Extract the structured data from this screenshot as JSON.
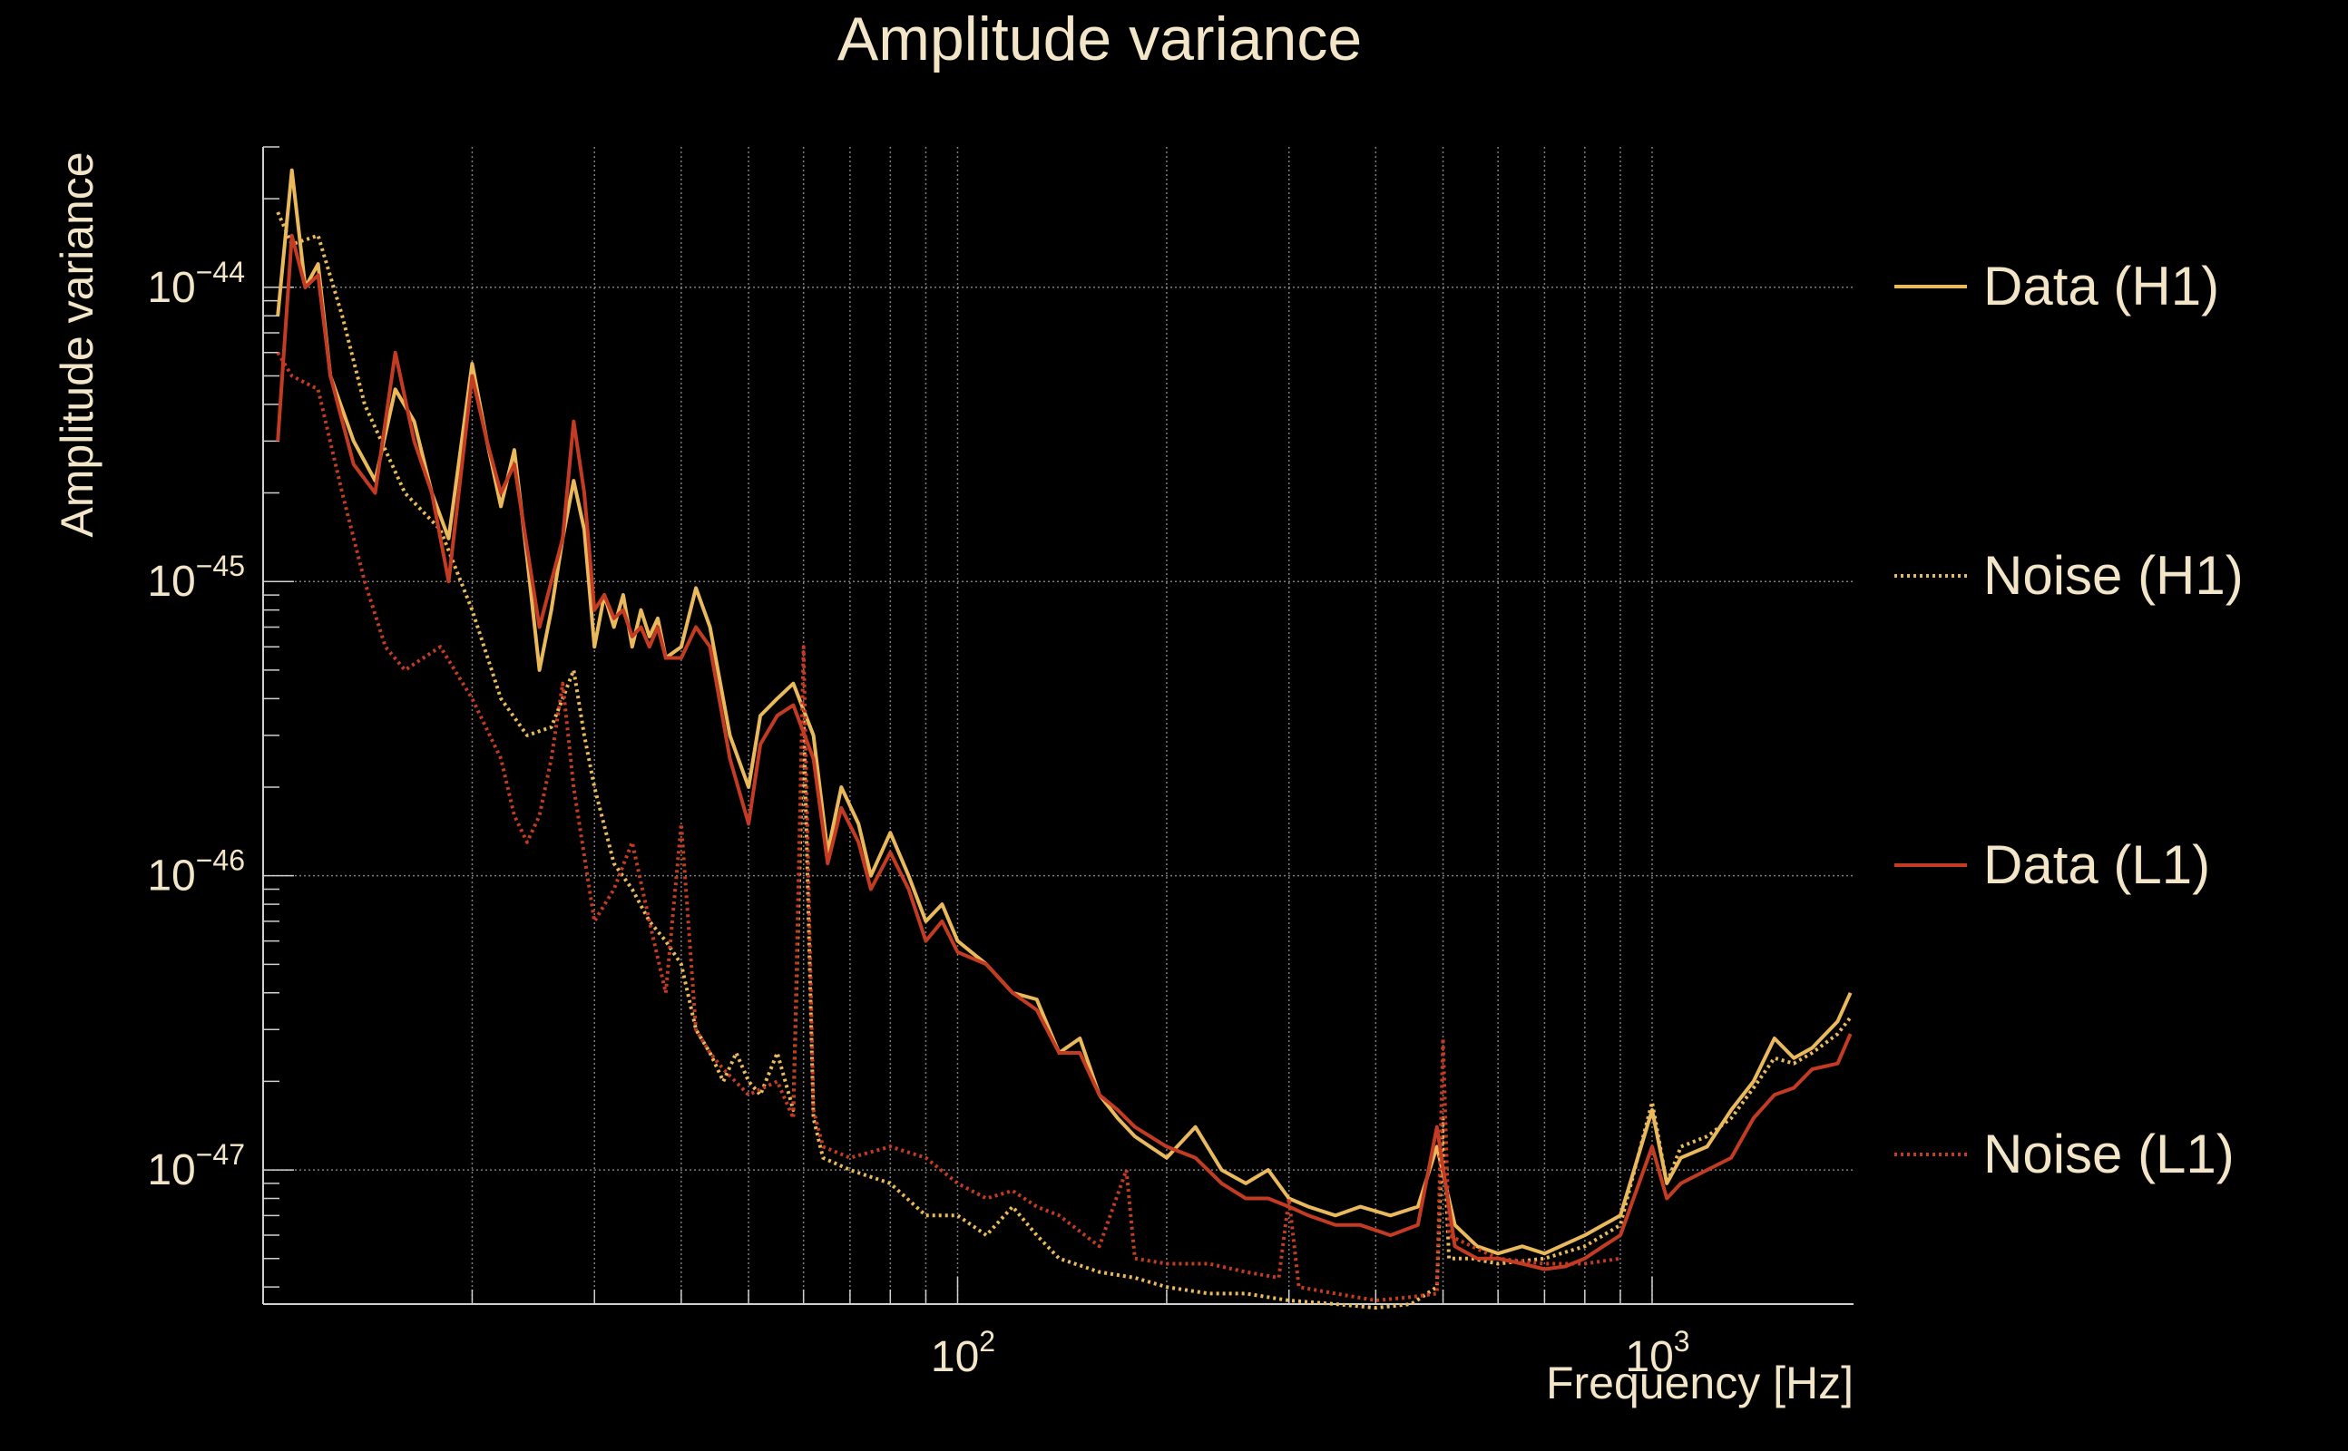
{
  "chart_data": {
    "type": "line",
    "title": "Amplitude variance",
    "xlabel": "Frequency [Hz]",
    "ylabel": "Amplitude variance",
    "xscale": "log",
    "yscale": "log",
    "xlim": [
      10,
      1950
    ],
    "ylim": [
      3.5e-48,
      3e-44
    ],
    "grid": true,
    "legend_position": "right",
    "x_ticks": [
      {
        "value": 100,
        "base": "10",
        "exp": "2"
      },
      {
        "value": 1000,
        "base": "10",
        "exp": "3"
      }
    ],
    "y_ticks": [
      {
        "value": 1e-44,
        "base": "10",
        "exp": "−44"
      },
      {
        "value": 1e-45,
        "base": "10",
        "exp": "−45"
      },
      {
        "value": 1e-46,
        "base": "10",
        "exp": "−46"
      },
      {
        "value": 1e-47,
        "base": "10",
        "exp": "−47"
      }
    ],
    "series": [
      {
        "name": "Data (H1)",
        "color": "#e9b95c",
        "dash": "solid",
        "points": [
          [
            10.5,
            8e-45
          ],
          [
            11,
            2.5e-44
          ],
          [
            11.5,
            1e-44
          ],
          [
            12,
            1.2e-44
          ],
          [
            12.5,
            5e-45
          ],
          [
            13.5,
            3e-45
          ],
          [
            14.5,
            2.2e-45
          ],
          [
            15.5,
            4.5e-45
          ],
          [
            16.5,
            3.5e-45
          ],
          [
            17.5,
            2e-45
          ],
          [
            18.5,
            1.4e-45
          ],
          [
            20,
            5.5e-45
          ],
          [
            21,
            3e-45
          ],
          [
            22,
            1.8e-45
          ],
          [
            23,
            2.8e-45
          ],
          [
            24,
            1.2e-45
          ],
          [
            25,
            5e-46
          ],
          [
            26,
            8e-46
          ],
          [
            27,
            1.4e-45
          ],
          [
            28,
            2.2e-45
          ],
          [
            29,
            1.5e-45
          ],
          [
            30,
            6e-46
          ],
          [
            31,
            9e-46
          ],
          [
            32,
            7e-46
          ],
          [
            33,
            9e-46
          ],
          [
            34,
            6e-46
          ],
          [
            35,
            8e-46
          ],
          [
            36,
            6.5e-46
          ],
          [
            37,
            7.5e-46
          ],
          [
            38,
            5.5e-46
          ],
          [
            40,
            6e-46
          ],
          [
            42,
            9.5e-46
          ],
          [
            44,
            7e-46
          ],
          [
            47,
            3e-46
          ],
          [
            50,
            2e-46
          ],
          [
            52,
            3.5e-46
          ],
          [
            55,
            4e-46
          ],
          [
            58,
            4.5e-46
          ],
          [
            62,
            3e-46
          ],
          [
            65,
            1.2e-46
          ],
          [
            68,
            2e-46
          ],
          [
            72,
            1.5e-46
          ],
          [
            75,
            1e-46
          ],
          [
            80,
            1.4e-46
          ],
          [
            85,
            1e-46
          ],
          [
            90,
            7e-47
          ],
          [
            95,
            8e-47
          ],
          [
            100,
            6e-47
          ],
          [
            110,
            5e-47
          ],
          [
            120,
            4e-47
          ],
          [
            130,
            3.8e-47
          ],
          [
            140,
            2.5e-47
          ],
          [
            150,
            2.8e-47
          ],
          [
            160,
            1.8e-47
          ],
          [
            170,
            1.5e-47
          ],
          [
            180,
            1.3e-47
          ],
          [
            200,
            1.1e-47
          ],
          [
            220,
            1.4e-47
          ],
          [
            240,
            1e-47
          ],
          [
            260,
            9e-48
          ],
          [
            280,
            1e-47
          ],
          [
            300,
            8e-48
          ],
          [
            320,
            7.5e-48
          ],
          [
            350,
            7e-48
          ],
          [
            380,
            7.5e-48
          ],
          [
            420,
            7e-48
          ],
          [
            460,
            7.5e-48
          ],
          [
            490,
            1.2e-47
          ],
          [
            520,
            6.5e-48
          ],
          [
            560,
            5.5e-48
          ],
          [
            600,
            5.2e-48
          ],
          [
            650,
            5.5e-48
          ],
          [
            700,
            5.2e-48
          ],
          [
            750,
            5.6e-48
          ],
          [
            800,
            6e-48
          ],
          [
            850,
            6.5e-48
          ],
          [
            900,
            7e-48
          ],
          [
            1000,
            1.6e-47
          ],
          [
            1050,
            9e-48
          ],
          [
            1100,
            1.1e-47
          ],
          [
            1200,
            1.2e-47
          ],
          [
            1300,
            1.6e-47
          ],
          [
            1400,
            2e-47
          ],
          [
            1500,
            2.8e-47
          ],
          [
            1600,
            2.4e-47
          ],
          [
            1700,
            2.6e-47
          ],
          [
            1850,
            3.2e-47
          ],
          [
            1930,
            4e-47
          ]
        ]
      },
      {
        "name": "Noise (H1)",
        "color": "#e9b95c",
        "dash": "dotted",
        "points": [
          [
            10.5,
            1.8e-44
          ],
          [
            11,
            1.4e-44
          ],
          [
            12,
            1.5e-44
          ],
          [
            13,
            8e-45
          ],
          [
            14,
            4e-45
          ],
          [
            16,
            2e-45
          ],
          [
            18,
            1.5e-45
          ],
          [
            20,
            8e-46
          ],
          [
            22,
            4e-46
          ],
          [
            24,
            3e-46
          ],
          [
            26,
            3.2e-46
          ],
          [
            27,
            4e-46
          ],
          [
            28,
            5e-46
          ],
          [
            29,
            3e-46
          ],
          [
            30,
            2e-46
          ],
          [
            32,
            1.1e-46
          ],
          [
            34,
            9e-47
          ],
          [
            36,
            7e-47
          ],
          [
            38,
            6e-47
          ],
          [
            40,
            5e-47
          ],
          [
            42,
            3e-47
          ],
          [
            44,
            2.5e-47
          ],
          [
            46,
            2e-47
          ],
          [
            48,
            2.5e-47
          ],
          [
            50,
            2e-47
          ],
          [
            52,
            1.8e-47
          ],
          [
            55,
            2.5e-47
          ],
          [
            58,
            1.6e-47
          ],
          [
            60,
            3.5e-46
          ],
          [
            62,
            1.5e-47
          ],
          [
            64,
            1.1e-47
          ],
          [
            70,
            1e-47
          ],
          [
            80,
            9e-48
          ],
          [
            90,
            7e-48
          ],
          [
            100,
            7e-48
          ],
          [
            110,
            6e-48
          ],
          [
            120,
            7.5e-48
          ],
          [
            130,
            6e-48
          ],
          [
            140,
            5e-48
          ],
          [
            160,
            4.5e-48
          ],
          [
            180,
            4.3e-48
          ],
          [
            200,
            4e-48
          ],
          [
            230,
            3.8e-48
          ],
          [
            260,
            3.8e-48
          ],
          [
            300,
            3.6e-48
          ],
          [
            350,
            3.5e-48
          ],
          [
            400,
            3.4e-48
          ],
          [
            450,
            3.5e-48
          ],
          [
            490,
            4e-48
          ],
          [
            500,
            1.5e-47
          ],
          [
            510,
            5e-48
          ],
          [
            550,
            5e-48
          ],
          [
            600,
            4.8e-48
          ],
          [
            700,
            5e-48
          ],
          [
            800,
            5.5e-48
          ],
          [
            900,
            6.5e-48
          ],
          [
            1000,
            1.7e-47
          ],
          [
            1050,
            9e-48
          ],
          [
            1100,
            1.2e-47
          ],
          [
            1200,
            1.3e-47
          ],
          [
            1300,
            1.5e-47
          ],
          [
            1400,
            1.9e-47
          ],
          [
            1500,
            2.4e-47
          ],
          [
            1600,
            2.3e-47
          ],
          [
            1700,
            2.5e-47
          ],
          [
            1850,
            2.9e-47
          ],
          [
            1930,
            3.3e-47
          ]
        ]
      },
      {
        "name": "Data (L1)",
        "color": "#c23b22",
        "dash": "solid",
        "points": [
          [
            10.5,
            3e-45
          ],
          [
            11,
            1.5e-44
          ],
          [
            11.5,
            1e-44
          ],
          [
            12,
            1.1e-44
          ],
          [
            12.5,
            5e-45
          ],
          [
            13.5,
            2.5e-45
          ],
          [
            14.5,
            2e-45
          ],
          [
            15.5,
            6e-45
          ],
          [
            16.5,
            3e-45
          ],
          [
            17.5,
            2e-45
          ],
          [
            18.5,
            1e-45
          ],
          [
            20,
            5e-45
          ],
          [
            21,
            3e-45
          ],
          [
            22,
            2e-45
          ],
          [
            23,
            2.5e-45
          ],
          [
            24,
            1.3e-45
          ],
          [
            25,
            7e-46
          ],
          [
            26,
            1e-45
          ],
          [
            27,
            1.4e-45
          ],
          [
            28,
            3.5e-45
          ],
          [
            29,
            2e-45
          ],
          [
            30,
            8e-46
          ],
          [
            31,
            9e-46
          ],
          [
            32,
            7.5e-46
          ],
          [
            33,
            8e-46
          ],
          [
            34,
            6.5e-46
          ],
          [
            35,
            7e-46
          ],
          [
            36,
            6e-46
          ],
          [
            37,
            7e-46
          ],
          [
            38,
            5.5e-46
          ],
          [
            40,
            5.5e-46
          ],
          [
            42,
            7e-46
          ],
          [
            44,
            6e-46
          ],
          [
            47,
            2.5e-46
          ],
          [
            50,
            1.5e-46
          ],
          [
            52,
            2.8e-46
          ],
          [
            55,
            3.5e-46
          ],
          [
            58,
            3.8e-46
          ],
          [
            62,
            2.5e-46
          ],
          [
            65,
            1.1e-46
          ],
          [
            68,
            1.7e-46
          ],
          [
            72,
            1.3e-46
          ],
          [
            75,
            9e-47
          ],
          [
            80,
            1.2e-46
          ],
          [
            85,
            9e-47
          ],
          [
            90,
            6e-47
          ],
          [
            95,
            7e-47
          ],
          [
            100,
            5.5e-47
          ],
          [
            110,
            5e-47
          ],
          [
            120,
            4e-47
          ],
          [
            130,
            3.5e-47
          ],
          [
            140,
            2.5e-47
          ],
          [
            150,
            2.5e-47
          ],
          [
            160,
            1.8e-47
          ],
          [
            170,
            1.6e-47
          ],
          [
            180,
            1.4e-47
          ],
          [
            200,
            1.2e-47
          ],
          [
            220,
            1.1e-47
          ],
          [
            240,
            9e-48
          ],
          [
            260,
            8e-48
          ],
          [
            280,
            8e-48
          ],
          [
            300,
            7.5e-48
          ],
          [
            320,
            7e-48
          ],
          [
            350,
            6.5e-48
          ],
          [
            380,
            6.5e-48
          ],
          [
            420,
            6e-48
          ],
          [
            460,
            6.5e-48
          ],
          [
            490,
            1.4e-47
          ],
          [
            520,
            5.5e-48
          ],
          [
            560,
            5e-48
          ],
          [
            600,
            5e-48
          ],
          [
            650,
            4.8e-48
          ],
          [
            700,
            4.6e-48
          ],
          [
            750,
            4.7e-48
          ],
          [
            800,
            5e-48
          ],
          [
            850,
            5.5e-48
          ],
          [
            900,
            6e-48
          ],
          [
            1000,
            1.2e-47
          ],
          [
            1050,
            8e-48
          ],
          [
            1100,
            9e-48
          ],
          [
            1200,
            1e-47
          ],
          [
            1300,
            1.1e-47
          ],
          [
            1400,
            1.5e-47
          ],
          [
            1500,
            1.8e-47
          ],
          [
            1600,
            1.9e-47
          ],
          [
            1700,
            2.2e-47
          ],
          [
            1850,
            2.3e-47
          ],
          [
            1930,
            2.9e-47
          ]
        ]
      },
      {
        "name": "Noise (L1)",
        "color": "#c23b22",
        "dash": "dotted",
        "points": [
          [
            10.5,
            6e-45
          ],
          [
            11,
            5e-45
          ],
          [
            12,
            4.5e-45
          ],
          [
            13,
            2e-45
          ],
          [
            14,
            1e-45
          ],
          [
            15,
            6e-46
          ],
          [
            16,
            5e-46
          ],
          [
            18,
            6e-46
          ],
          [
            20,
            4e-46
          ],
          [
            22,
            2.5e-46
          ],
          [
            23,
            1.6e-46
          ],
          [
            24,
            1.3e-46
          ],
          [
            25,
            1.6e-46
          ],
          [
            26,
            2.5e-46
          ],
          [
            27,
            4.5e-46
          ],
          [
            28,
            2e-46
          ],
          [
            30,
            7e-47
          ],
          [
            32,
            9e-47
          ],
          [
            34,
            1.3e-46
          ],
          [
            36,
            7e-47
          ],
          [
            38,
            4e-47
          ],
          [
            40,
            1.5e-46
          ],
          [
            42,
            3e-47
          ],
          [
            44,
            2.5e-47
          ],
          [
            46,
            2.2e-47
          ],
          [
            50,
            1.8e-47
          ],
          [
            55,
            2e-47
          ],
          [
            58,
            1.5e-47
          ],
          [
            60,
            6e-46
          ],
          [
            62,
            1.6e-47
          ],
          [
            64,
            1.2e-47
          ],
          [
            70,
            1.1e-47
          ],
          [
            80,
            1.2e-47
          ],
          [
            90,
            1.1e-47
          ],
          [
            100,
            9e-48
          ],
          [
            110,
            8e-48
          ],
          [
            120,
            8.5e-48
          ],
          [
            130,
            7.5e-48
          ],
          [
            140,
            7e-48
          ],
          [
            160,
            5.5e-48
          ],
          [
            175,
            1e-47
          ],
          [
            180,
            5e-48
          ],
          [
            200,
            4.8e-48
          ],
          [
            230,
            4.8e-48
          ],
          [
            260,
            4.5e-48
          ],
          [
            290,
            4.3e-48
          ],
          [
            300,
            8e-48
          ],
          [
            310,
            4e-48
          ],
          [
            350,
            3.8e-48
          ],
          [
            400,
            3.6e-48
          ],
          [
            450,
            3.7e-48
          ],
          [
            490,
            3.8e-48
          ],
          [
            500,
            2.8e-47
          ],
          [
            510,
            6e-48
          ],
          [
            550,
            5.5e-48
          ],
          [
            600,
            5e-48
          ],
          [
            700,
            4.8e-48
          ],
          [
            800,
            4.8e-48
          ],
          [
            900,
            5e-48
          ]
        ]
      }
    ]
  }
}
